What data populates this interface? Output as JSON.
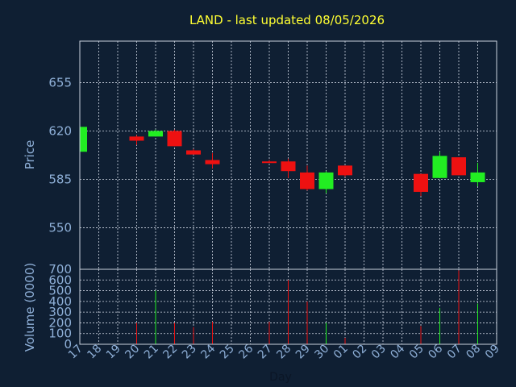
{
  "chart_data": {
    "type": "candlestick",
    "title": "LAND - last updated 08/05/2026",
    "xlabel": "Day",
    "price_panel": {
      "ylabel": "Price",
      "ylim": [
        520,
        685
      ],
      "yticks": [
        550,
        585,
        620,
        655
      ]
    },
    "volume_panel": {
      "ylabel": "Volume (0000)",
      "ylim": [
        0,
        700
      ],
      "yticks": [
        0,
        100,
        200,
        300,
        400,
        500,
        600,
        700
      ]
    },
    "categories": [
      "17",
      "18",
      "19",
      "20",
      "21",
      "22",
      "23",
      "24",
      "25",
      "26",
      "27",
      "28",
      "29",
      "30",
      "01",
      "02",
      "03",
      "04",
      "05",
      "06",
      "07",
      "08",
      "09"
    ],
    "candles": [
      {
        "day": "17",
        "open": 605,
        "close": 623,
        "high": 623,
        "low": 605,
        "volume": 20
      },
      {
        "day": "20",
        "open": 616,
        "close": 613,
        "high": 617,
        "low": 610,
        "volume": 200
      },
      {
        "day": "21",
        "open": 616,
        "close": 620,
        "high": 621,
        "low": 616,
        "volume": 500
      },
      {
        "day": "22",
        "open": 620,
        "close": 609,
        "high": 621,
        "low": 609,
        "volume": 200
      },
      {
        "day": "23",
        "open": 606,
        "close": 603,
        "high": 607,
        "low": 603,
        "volume": 160
      },
      {
        "day": "24",
        "open": 599,
        "close": 596,
        "high": 604,
        "low": 593,
        "volume": 210
      },
      {
        "day": "27",
        "open": 598,
        "close": 597,
        "high": 599,
        "low": 597,
        "volume": 210
      },
      {
        "day": "28",
        "open": 598,
        "close": 591,
        "high": 600,
        "low": 586,
        "volume": 600
      },
      {
        "day": "29",
        "open": 590,
        "close": 578,
        "high": 595,
        "low": 577,
        "volume": 400
      },
      {
        "day": "30",
        "open": 578,
        "close": 590,
        "high": 591,
        "low": 575,
        "volume": 200
      },
      {
        "day": "01",
        "open": 595,
        "close": 588,
        "high": 595,
        "low": 587,
        "volume": 60
      },
      {
        "day": "05",
        "open": 589,
        "close": 576,
        "high": 589,
        "low": 573,
        "volume": 170
      },
      {
        "day": "06",
        "open": 586,
        "close": 602,
        "high": 605,
        "low": 586,
        "volume": 340
      },
      {
        "day": "07",
        "open": 601,
        "close": 588,
        "high": 601,
        "low": 588,
        "volume": 690
      },
      {
        "day": "08",
        "open": 583,
        "close": 590,
        "high": 597,
        "low": 580,
        "volume": 380
      }
    ],
    "colors": {
      "up": "#22ee22",
      "down": "#ee1111",
      "background": "#0f1f33",
      "title": "#ffff33",
      "axis_text": "#8fb0d8",
      "grid": "#d0d8e4"
    },
    "grid": true
  }
}
